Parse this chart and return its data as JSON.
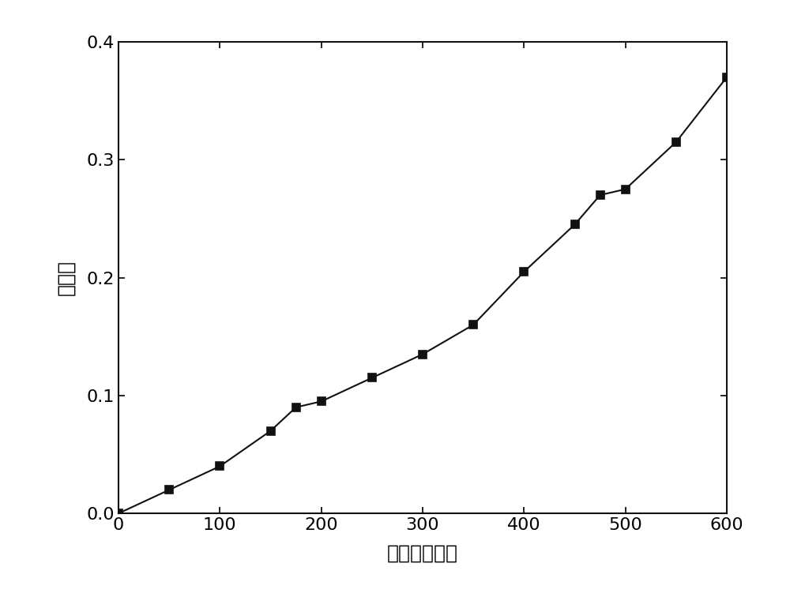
{
  "x": [
    0,
    50,
    100,
    150,
    175,
    200,
    250,
    300,
    350,
    400,
    450,
    475,
    500,
    550,
    600
  ],
  "y": [
    0.0,
    0.02,
    0.04,
    0.07,
    0.09,
    0.095,
    0.115,
    0.135,
    0.16,
    0.205,
    0.245,
    0.27,
    0.275,
    0.315,
    0.37
  ],
  "xlabel": "时间（分钟）",
  "ylabel": "降解率",
  "line_color": "#111111",
  "marker": "s",
  "marker_color": "#111111",
  "marker_size": 7,
  "linewidth": 1.5,
  "xlim": [
    0,
    600
  ],
  "ylim": [
    0.0,
    0.4
  ],
  "xticks": [
    0,
    100,
    200,
    300,
    400,
    500,
    600
  ],
  "yticks": [
    0.0,
    0.1,
    0.2,
    0.3,
    0.4
  ],
  "background_color": "#ffffff",
  "figure_facecolor": "#ffffff",
  "axis_fontsize": 18,
  "tick_fontsize": 16
}
